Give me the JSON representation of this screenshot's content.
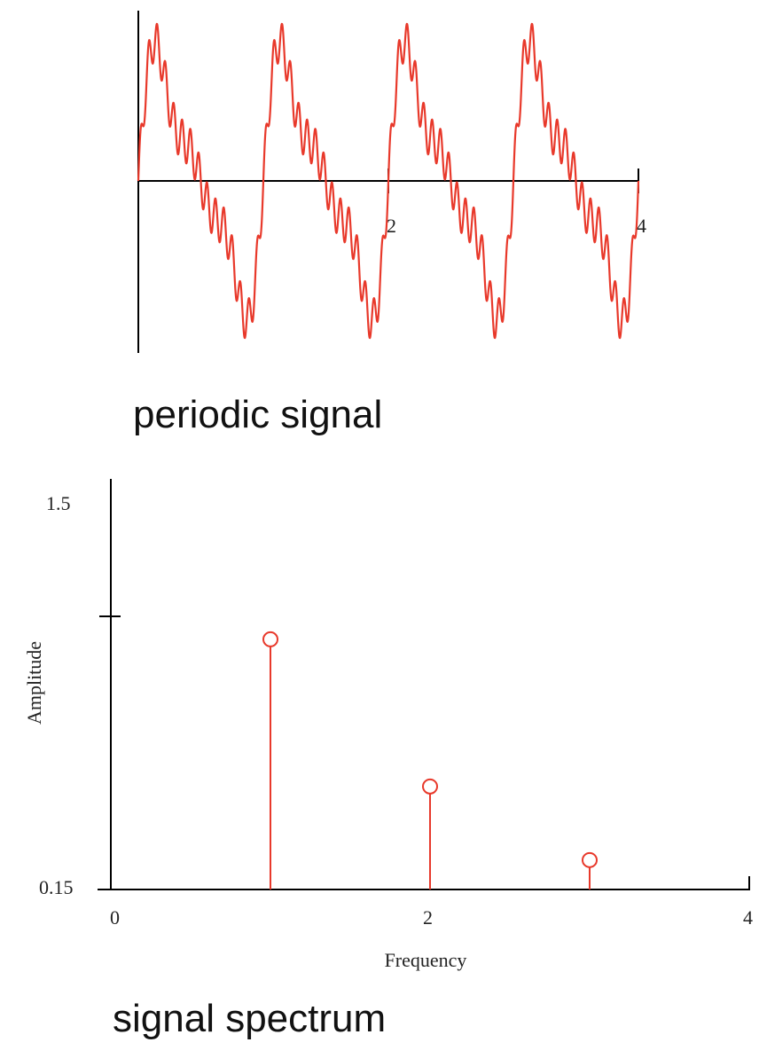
{
  "figures": [
    {
      "caption": "periodic signal"
    },
    {
      "caption": "signal spectrum"
    }
  ],
  "colors": {
    "signal": "#e8392b",
    "axis": "#000000",
    "text": "#222222"
  },
  "chart_data": [
    {
      "type": "line",
      "title": "",
      "xlabel": "",
      "ylabel": "",
      "xlim": [
        0,
        4
      ],
      "ylim": [
        -1.5,
        1.5
      ],
      "x_ticks": [
        {
          "value": 0,
          "label": ""
        },
        {
          "value": 2,
          "label": "2"
        },
        {
          "value": 4,
          "label": "4"
        }
      ],
      "grid": false,
      "series": [
        {
          "function": "sin(2*pi*t) + 0.5*sin(4*pi*t) + 0.25*sin(6*pi*t) + 0.2*sin(30*pi*t)",
          "x_range": [
            0,
            4
          ]
        }
      ]
    },
    {
      "type": "scatter",
      "style": "stem",
      "title": "",
      "xlabel": "Frequency",
      "ylabel": "Amplitude",
      "xlim": [
        0,
        4
      ],
      "ylim": [
        0.15,
        1.5
      ],
      "x_ticks": [
        {
          "value": 0,
          "label": "0"
        },
        {
          "value": 2,
          "label": "2"
        },
        {
          "value": 4,
          "label": "4"
        }
      ],
      "y_ticks": [
        {
          "value": 0.15,
          "label": "0.15"
        },
        {
          "value": 1.0,
          "label": ""
        },
        {
          "value": 1.5,
          "label": "1.5"
        }
      ],
      "grid": false,
      "series": [
        {
          "x": [
            1,
            2,
            3
          ],
          "y": [
            1.0,
            0.5,
            0.25
          ]
        }
      ]
    }
  ]
}
